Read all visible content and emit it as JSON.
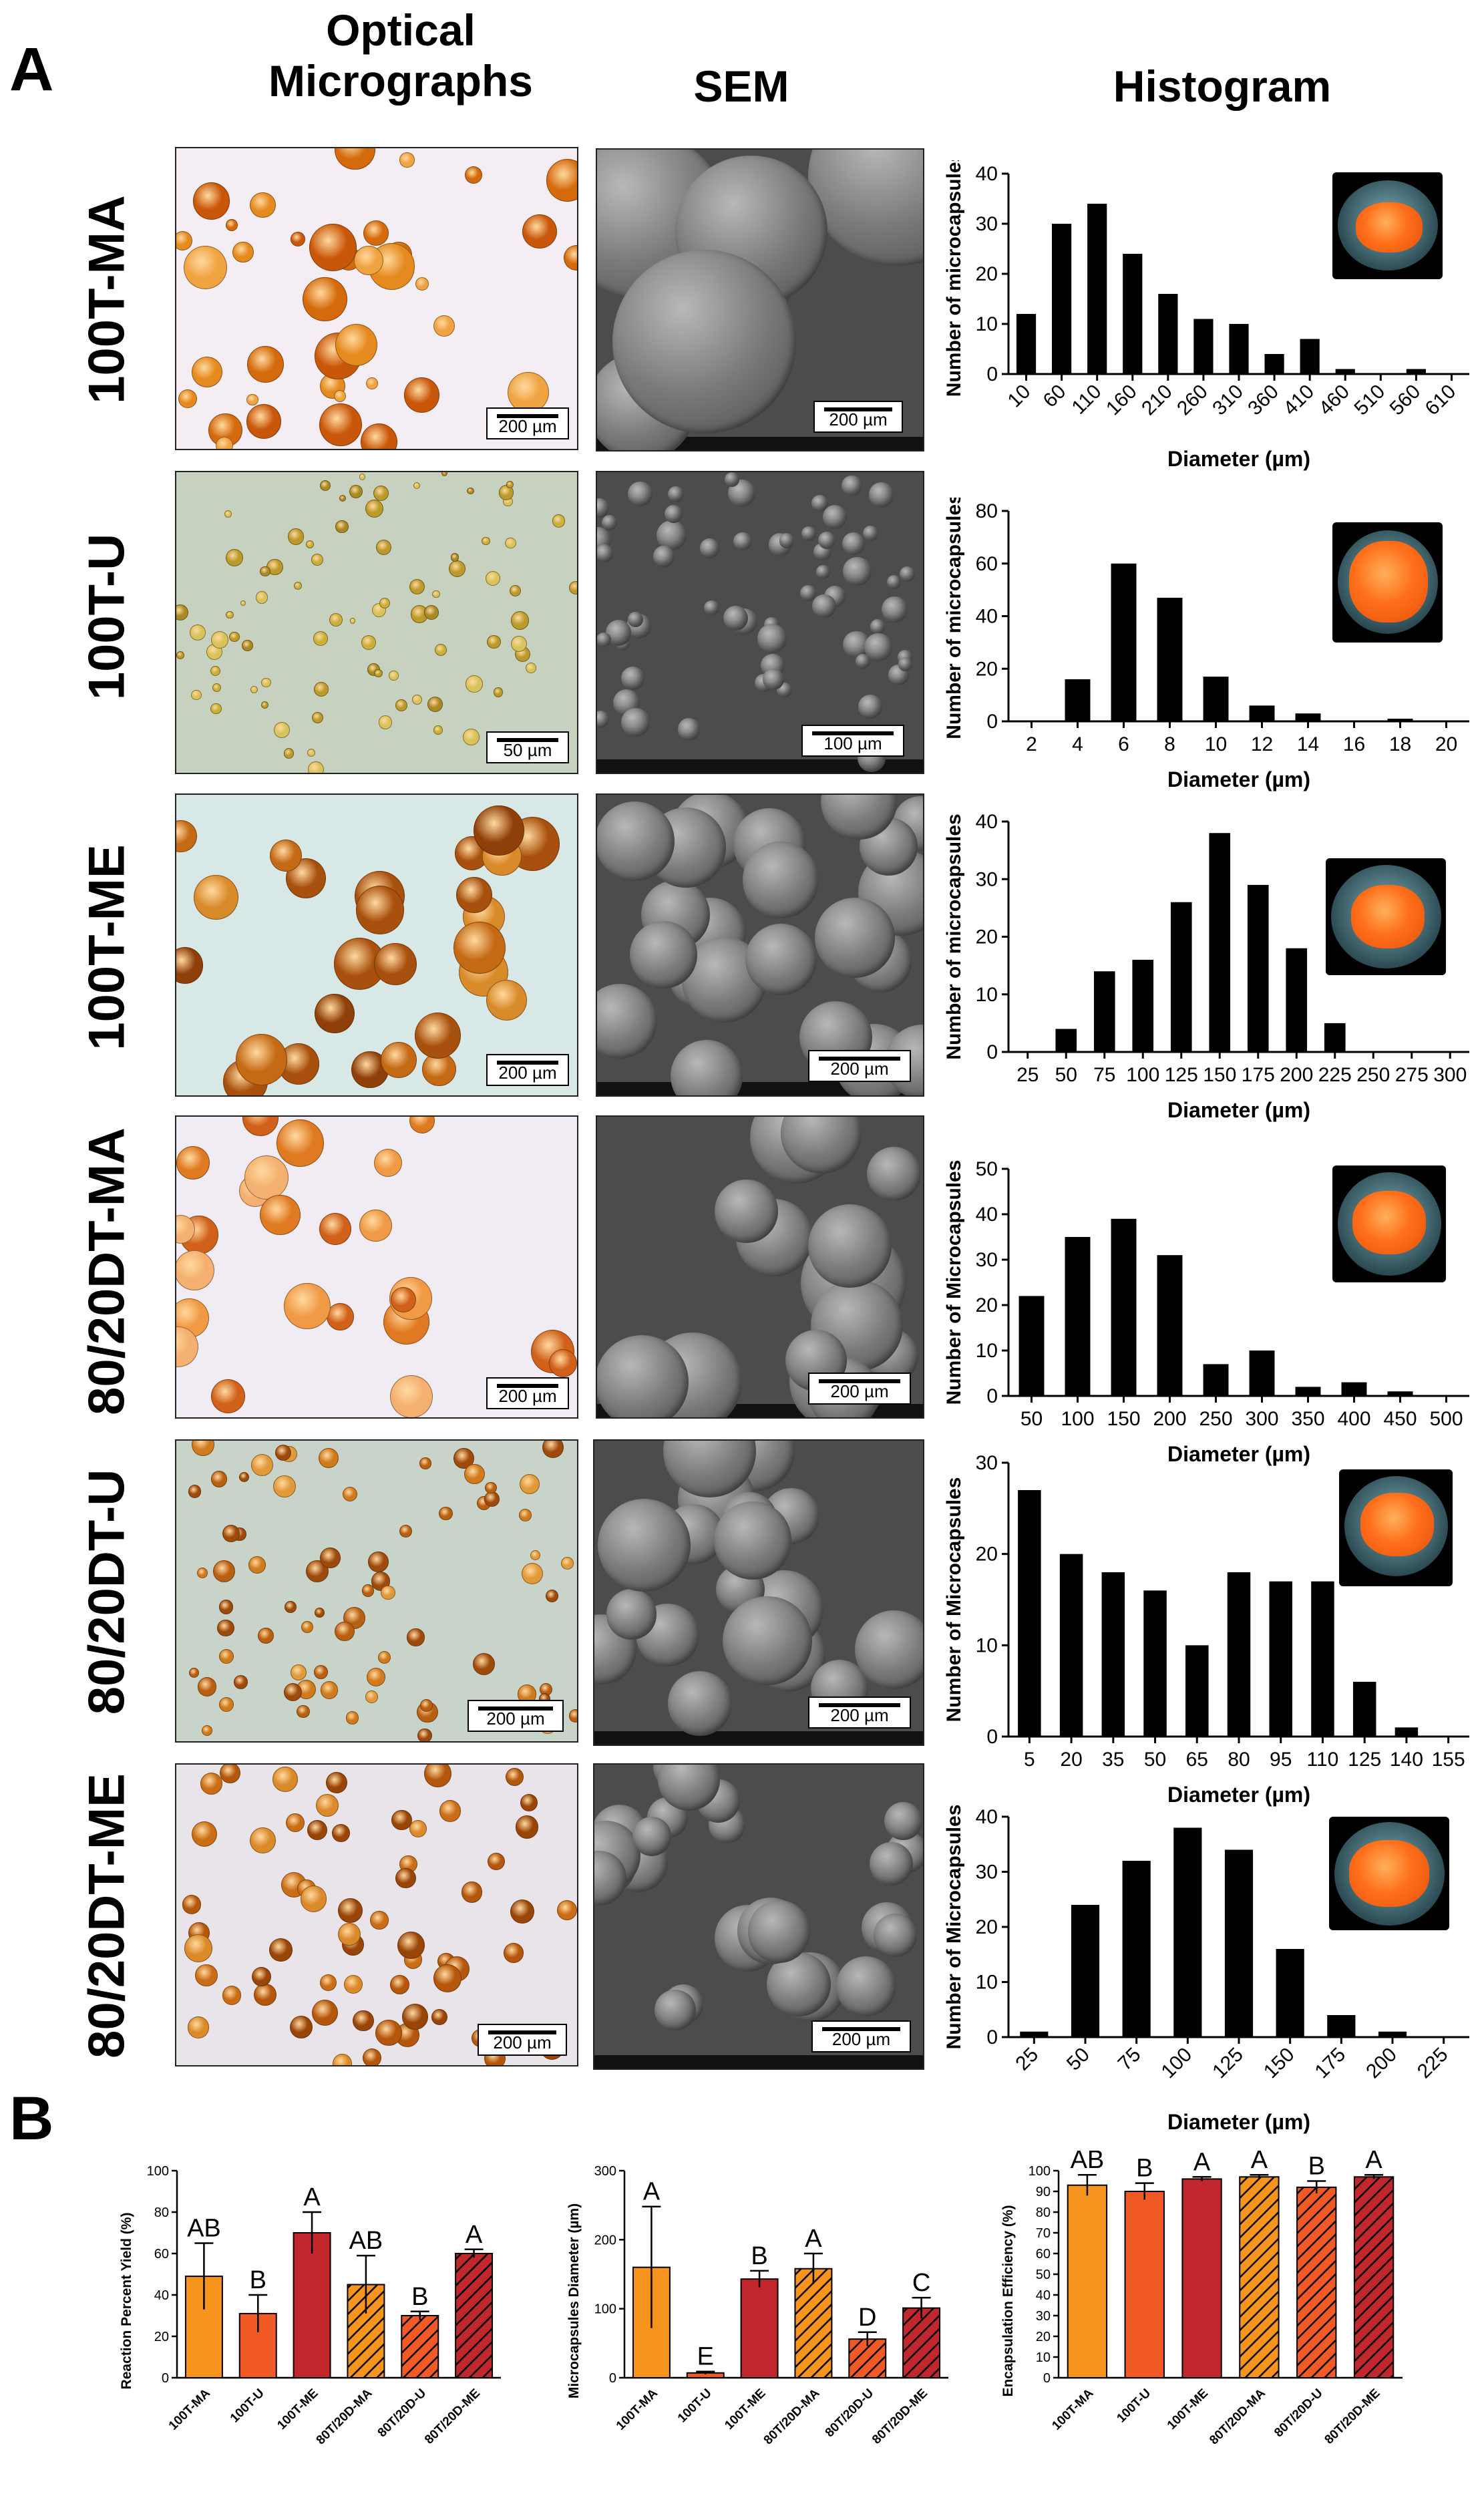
{
  "panel_labels": {
    "a": "A",
    "b": "B"
  },
  "column_headers": {
    "optical": "Optical Micrographs",
    "sem": "SEM",
    "histogram": "Histogram"
  },
  "colors": {
    "bar": "#000000",
    "ma": "#f7941d",
    "u": "#f15a24",
    "me": "#c1272d",
    "tick_text": "#000000"
  },
  "rows": [
    {
      "label": "100T-MA",
      "optical_scale": "200 µm",
      "sem_scale": "200 µm"
    },
    {
      "label": "100T-U",
      "optical_scale": "50 µm",
      "sem_scale": "100 µm"
    },
    {
      "label": "100T-ME",
      "optical_scale": "200 µm",
      "sem_scale": "200 µm"
    },
    {
      "label": "80/20DT-MA",
      "optical_scale": "200 µm",
      "sem_scale": "200 µm"
    },
    {
      "label": "80/20DT-U",
      "optical_scale": "200 µm",
      "sem_scale": "200 µm"
    },
    {
      "label": "80/20DT-ME",
      "optical_scale": "200 µm",
      "sem_scale": "200 µm"
    }
  ],
  "chart_data": [
    {
      "type": "bar",
      "title": "",
      "xlabel": "Diameter (µm)",
      "ylabel": "Number of microcapsules",
      "ylim": [
        0,
        40
      ],
      "yticks": [
        0,
        10,
        20,
        30,
        40
      ],
      "categories": [
        "10",
        "60",
        "110",
        "160",
        "210",
        "260",
        "310",
        "360",
        "410",
        "460",
        "510",
        "560",
        "610"
      ],
      "values": [
        12,
        30,
        34,
        24,
        16,
        11,
        10,
        4,
        7,
        1,
        0,
        1,
        0
      ],
      "rotate_ticks": true
    },
    {
      "type": "bar",
      "title": "",
      "xlabel": "Diameter (µm)",
      "ylabel": "Number of microcapsules",
      "ylim": [
        0,
        80
      ],
      "yticks": [
        0,
        20,
        40,
        60,
        80
      ],
      "categories": [
        "2",
        "4",
        "6",
        "8",
        "10",
        "12",
        "14",
        "16",
        "18",
        "20"
      ],
      "values": [
        0,
        16,
        60,
        47,
        17,
        6,
        3,
        0,
        1,
        0
      ],
      "rotate_ticks": false
    },
    {
      "type": "bar",
      "title": "",
      "xlabel": "Diameter (µm)",
      "ylabel": "Number of microcapsules",
      "ylim": [
        0,
        40
      ],
      "yticks": [
        0,
        10,
        20,
        30,
        40
      ],
      "categories": [
        "25",
        "50",
        "75",
        "100",
        "125",
        "150",
        "175",
        "200",
        "225",
        "250",
        "275",
        "300"
      ],
      "values": [
        0,
        4,
        14,
        16,
        26,
        38,
        29,
        18,
        5,
        0,
        0,
        0
      ],
      "rotate_ticks": false
    },
    {
      "type": "bar",
      "title": "",
      "xlabel": "Diameter (µm)",
      "ylabel": "Number of Microcapsules",
      "ylim": [
        0,
        50
      ],
      "yticks": [
        0,
        10,
        20,
        30,
        40,
        50
      ],
      "categories": [
        "50",
        "100",
        "150",
        "200",
        "250",
        "300",
        "350",
        "400",
        "450",
        "500"
      ],
      "values": [
        22,
        35,
        39,
        31,
        7,
        10,
        2,
        3,
        1,
        0
      ],
      "rotate_ticks": false
    },
    {
      "type": "bar",
      "title": "",
      "xlabel": "Diameter (µm)",
      "ylabel": "Number of Microcapsules",
      "ylim": [
        0,
        30
      ],
      "yticks": [
        0,
        10,
        20,
        30
      ],
      "categories": [
        "5",
        "20",
        "35",
        "50",
        "65",
        "80",
        "95",
        "110",
        "125",
        "140",
        "155"
      ],
      "values": [
        27,
        20,
        18,
        16,
        10,
        18,
        17,
        17,
        6,
        1,
        0
      ],
      "rotate_ticks": false
    },
    {
      "type": "bar",
      "title": "",
      "xlabel": "Diameter (µm)",
      "ylabel": "Number of Microcapsules",
      "ylim": [
        0,
        40
      ],
      "yticks": [
        0,
        10,
        20,
        30,
        40
      ],
      "categories": [
        "25",
        "50",
        "75",
        "100",
        "125",
        "150",
        "175",
        "200",
        "225"
      ],
      "values": [
        1,
        24,
        32,
        38,
        34,
        16,
        4,
        1,
        0
      ],
      "rotate_ticks": true
    },
    {
      "type": "bar",
      "title": "",
      "xlabel": "",
      "ylabel": "Reaction Percent Yield (%)",
      "ylim": [
        0,
        100
      ],
      "yticks": [
        0,
        20,
        40,
        60,
        80,
        100
      ],
      "categories": [
        "100T-MA",
        "100T-U",
        "100T-ME",
        "80T/20D-MA",
        "80T/20D-U",
        "80T/20D-ME"
      ],
      "values": [
        49,
        31,
        70,
        45,
        30,
        60
      ],
      "errors": [
        16,
        9,
        10,
        14,
        2,
        2
      ],
      "letters": [
        "AB",
        "B",
        "A",
        "AB",
        "B",
        "A"
      ],
      "fills": [
        "ma",
        "u",
        "me",
        "ma",
        "u",
        "me"
      ],
      "hatched": [
        false,
        false,
        false,
        true,
        true,
        true
      ]
    },
    {
      "type": "bar",
      "title": "",
      "xlabel": "",
      "ylabel": "Microcapsules Diameter (µm)",
      "ylim": [
        0,
        300
      ],
      "yticks": [
        0,
        100,
        200,
        300
      ],
      "categories": [
        "100T-MA",
        "100T-U",
        "100T-ME",
        "80T/20D-MA",
        "80T/20D-U",
        "80T/20D-ME"
      ],
      "values": [
        160,
        7,
        143,
        158,
        56,
        101
      ],
      "errors": [
        88,
        2,
        12,
        22,
        10,
        15
      ],
      "letters": [
        "A",
        "E",
        "B",
        "A",
        "D",
        "C"
      ],
      "fills": [
        "ma",
        "u",
        "me",
        "ma",
        "u",
        "me"
      ],
      "hatched": [
        false,
        false,
        false,
        true,
        true,
        true
      ]
    },
    {
      "type": "bar",
      "title": "",
      "xlabel": "",
      "ylabel": "Encapsulation Efficiency (%)",
      "ylim": [
        0,
        100
      ],
      "yticks": [
        0,
        10,
        20,
        30,
        40,
        50,
        60,
        70,
        80,
        90,
        100
      ],
      "categories": [
        "100T-MA",
        "100T-U",
        "100T-ME",
        "80T/20D-MA",
        "80T/20D-U",
        "80T/20D-ME"
      ],
      "values": [
        93,
        90,
        96,
        97,
        92,
        97
      ],
      "errors": [
        5,
        4,
        1,
        1,
        3,
        1
      ],
      "letters": [
        "AB",
        "B",
        "A",
        "A",
        "B",
        "A"
      ],
      "fills": [
        "ma",
        "u",
        "me",
        "ma",
        "u",
        "me"
      ],
      "hatched": [
        false,
        false,
        false,
        true,
        true,
        true
      ]
    }
  ]
}
